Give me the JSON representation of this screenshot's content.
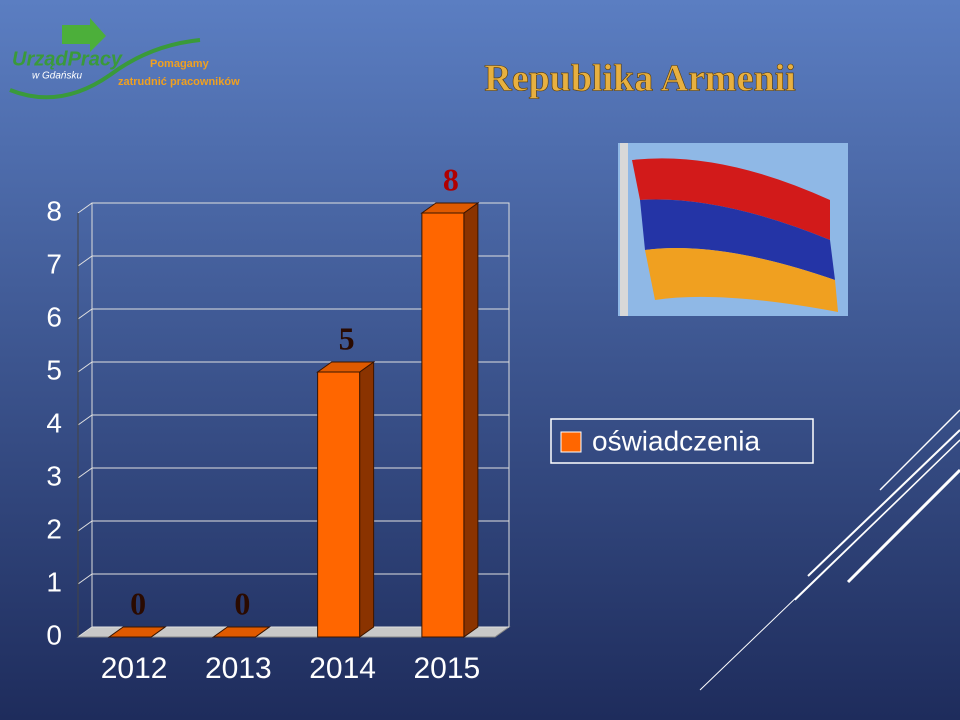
{
  "logo": {
    "name": "UrządPracy",
    "city": "w Gdańsku",
    "slogan": [
      "Pomagamy",
      "zatrudnić pracowników"
    ]
  },
  "chart_data": {
    "type": "bar",
    "title": "Republika Armenii",
    "categories": [
      "2012",
      "2013",
      "2014",
      "2015"
    ],
    "series": [
      {
        "name": "oświadczenia",
        "color": "#ff6600",
        "values": [
          0,
          0,
          5,
          8
        ]
      }
    ],
    "ylim": [
      0,
      8
    ],
    "yticks": [
      0,
      1,
      2,
      3,
      4,
      5,
      6,
      7,
      8
    ],
    "grid": true,
    "legend": "right"
  }
}
